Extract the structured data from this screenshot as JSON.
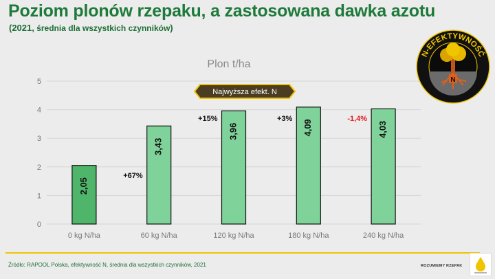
{
  "header": {
    "title": "Poziom plonów rzepaku, a zastosowana dawka azotu",
    "subtitle_year": "(2021,",
    "subtitle_rest": " średnia dla wszystkich czynników",
    "subtitle_close": ")"
  },
  "chart_data": {
    "type": "bar",
    "title": "Plon t/ha",
    "categories": [
      "0 kg N/ha",
      "60 kg N/ha",
      "120 kg N/ha",
      "180 kg N/ha",
      "240 kg N/ha"
    ],
    "values": [
      2.05,
      3.43,
      3.96,
      4.09,
      4.03
    ],
    "value_labels": [
      "2,05",
      "3,43",
      "3,96",
      "4,09",
      "4,03"
    ],
    "change_labels": [
      "",
      "+67%",
      "+15%",
      "+3%",
      "-1,4%"
    ],
    "ylim": [
      0,
      5
    ],
    "yticks": [
      0,
      1,
      2,
      3,
      4,
      5
    ],
    "grid": true,
    "legend": "none",
    "highlight_label": "Najwyższa efekt. N",
    "colors": {
      "first_bar": "#4fb56a",
      "bar": "#7fd39a",
      "bar_stroke": "#111111",
      "grid": "#d6d6d6",
      "positive_change": "#111111",
      "negative_change": "#e02020",
      "highlight_fill": "#4a3d22",
      "highlight_border": "#f3c300",
      "highlight_text": "#ffffff"
    }
  },
  "logo": {
    "text": "N-EFEKTYWNOŚĆ",
    "letter": "N",
    "icon": "tree-roots-icon",
    "colors": {
      "ring": "#111111",
      "text": "#f0c400",
      "sky": "#0b0b0b",
      "ground": "#6b6b6b",
      "root": "#e0601a"
    }
  },
  "footer": {
    "source": "Źródło: RAPOOL Polska, efektywność N, średnia dla wszystkich czynników, 2021",
    "brand": "ROZUMIEMY RZEPAK",
    "rule_color": "#f0c400"
  }
}
